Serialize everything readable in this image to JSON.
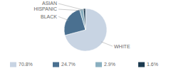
{
  "chart_data": {
    "type": "pie",
    "categories": [
      "WHITE",
      "BLACK",
      "HISPANIC",
      "ASIAN"
    ],
    "values": [
      70.8,
      24.7,
      2.9,
      1.6
    ],
    "value_labels": [
      "70.8%",
      "24.7%",
      "2.9%",
      "1.6%"
    ],
    "colors": [
      "#c8d4e3",
      "#4a7090",
      "#8aafc0",
      "#1c3a50"
    ],
    "legend": "bottom"
  }
}
